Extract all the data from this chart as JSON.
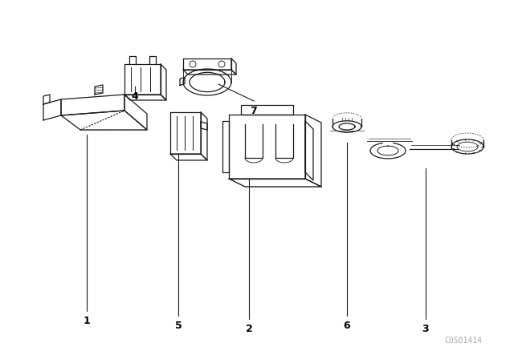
{
  "background_color": "#ffffff",
  "line_color": "#1a1a1a",
  "label_color": "#000000",
  "figure_width": 6.4,
  "figure_height": 4.48,
  "dpi": 100,
  "watermark": "C0S01414",
  "watermark_color": "#aaaaaa",
  "watermark_fontsize": 7
}
